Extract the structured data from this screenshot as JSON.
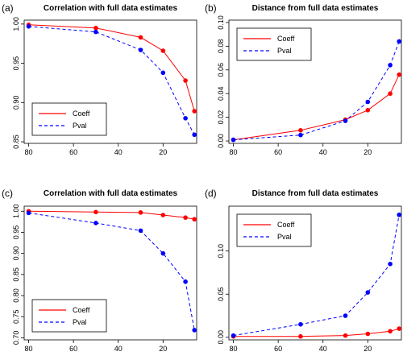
{
  "chart_data": [
    {
      "panel": "(a)",
      "type": "line",
      "title": "Correlation with full data estimates",
      "x": [
        80,
        50,
        30,
        20,
        10,
        6
      ],
      "series": [
        {
          "name": "Coeff",
          "color": "#ff0000",
          "dash": "solid",
          "values": [
            0.999,
            0.995,
            0.983,
            0.966,
            0.928,
            0.889
          ]
        },
        {
          "name": "Pval",
          "color": "#0000ff",
          "dash": "dashed",
          "values": [
            0.997,
            0.99,
            0.967,
            0.938,
            0.88,
            0.859
          ]
        }
      ],
      "xlim": [
        82,
        5
      ],
      "ylim": [
        0.848,
        1.005
      ],
      "xticks": [
        "80",
        "60",
        "40",
        "20"
      ],
      "yticks": [
        "0.85",
        "0.90",
        "0.95",
        "1.00"
      ],
      "legend_position": "bottom-left"
    },
    {
      "panel": "(b)",
      "type": "line",
      "title": "Distance from full data estimates",
      "x": [
        80,
        50,
        30,
        20,
        10,
        6
      ],
      "series": [
        {
          "name": "Coeff",
          "color": "#ff0000",
          "dash": "solid",
          "values": [
            0.001,
            0.009,
            0.018,
            0.026,
            0.04,
            0.056
          ]
        },
        {
          "name": "Pval",
          "color": "#0000ff",
          "dash": "dashed",
          "values": [
            0.001,
            0.005,
            0.017,
            0.033,
            0.064,
            0.084
          ]
        }
      ],
      "xlim": [
        82,
        5
      ],
      "ylim": [
        -0.002,
        0.102
      ],
      "xticks": [
        "80",
        "60",
        "40",
        "20"
      ],
      "yticks": [
        "0.00",
        "0.02",
        "0.04",
        "0.06",
        "0.08",
        "0.10"
      ],
      "legend_position": "top-left"
    },
    {
      "panel": "(c)",
      "type": "line",
      "title": "Correlation with full data estimates",
      "x": [
        80,
        50,
        30,
        20,
        10,
        6
      ],
      "series": [
        {
          "name": "Coeff",
          "color": "#ff0000",
          "dash": "solid",
          "values": [
            1.0,
            0.998,
            0.997,
            0.991,
            0.985,
            0.981
          ]
        },
        {
          "name": "Pval",
          "color": "#0000ff",
          "dash": "dashed",
          "values": [
            0.996,
            0.972,
            0.954,
            0.9,
            0.833,
            0.718
          ]
        }
      ],
      "xlim": [
        82,
        5
      ],
      "ylim": [
        0.695,
        1.012
      ],
      "xticks": [
        "80",
        "60",
        "40",
        "20"
      ],
      "yticks": [
        "0.70",
        "0.75",
        "0.80",
        "0.85",
        "0.90",
        "0.95",
        "1.00"
      ],
      "legend_position": "bottom-left"
    },
    {
      "panel": "(d)",
      "type": "line",
      "title": "Distance from full data estimates",
      "x": [
        80,
        50,
        30,
        20,
        10,
        6
      ],
      "series": [
        {
          "name": "Coeff",
          "color": "#ff0000",
          "dash": "solid",
          "values": [
            0.001,
            0.001,
            0.002,
            0.004,
            0.007,
            0.01
          ]
        },
        {
          "name": "Pval",
          "color": "#0000ff",
          "dash": "dashed",
          "values": [
            0.002,
            0.015,
            0.025,
            0.052,
            0.085,
            0.142
          ]
        }
      ],
      "xlim": [
        82,
        5
      ],
      "ylim": [
        -0.003,
        0.152
      ],
      "xticks": [
        "80",
        "60",
        "40",
        "20"
      ],
      "yticks": [
        "0.00",
        "0.05",
        "0.10"
      ],
      "legend_position": "top-left"
    }
  ]
}
